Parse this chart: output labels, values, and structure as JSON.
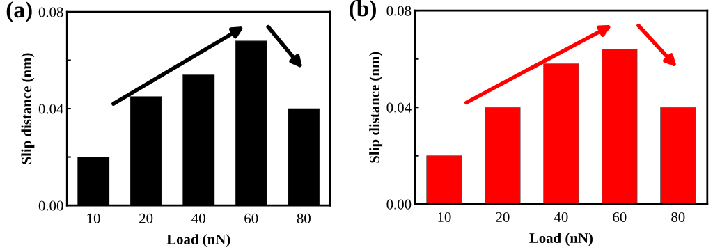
{
  "chart_data": [
    {
      "type": "bar",
      "title": "(a)",
      "xlabel": "Load (nN)",
      "ylabel": "Slip distance (nm)",
      "categories": [
        "10",
        "20",
        "40",
        "60",
        "80"
      ],
      "values": [
        0.02,
        0.045,
        0.054,
        0.068,
        0.04
      ],
      "color": "#000000",
      "ylim": [
        0,
        0.08
      ],
      "yticks": [
        {
          "value": 0,
          "label": "0.00"
        },
        {
          "value": 0.02,
          "label": null
        },
        {
          "value": 0.04,
          "label": "0.04"
        },
        {
          "value": 0.06,
          "label": null
        },
        {
          "value": 0.08,
          "label": "0.08"
        }
      ],
      "grid": false,
      "legend": false
    },
    {
      "type": "bar",
      "title": "(b)",
      "xlabel": "Load (nN)",
      "ylabel": "Slip distance (nm)",
      "categories": [
        "10",
        "20",
        "40",
        "60",
        "80"
      ],
      "values": [
        0.02,
        0.04,
        0.058,
        0.064,
        0.04
      ],
      "color": "#ff0000",
      "ylim": [
        0,
        0.08
      ],
      "yticks": [
        {
          "value": 0,
          "label": "0.00"
        },
        {
          "value": 0.02,
          "label": null
        },
        {
          "value": 0.04,
          "label": "0.04"
        },
        {
          "value": 0.06,
          "label": null
        },
        {
          "value": 0.08,
          "label": "0.08"
        }
      ],
      "grid": false,
      "legend": false
    }
  ]
}
